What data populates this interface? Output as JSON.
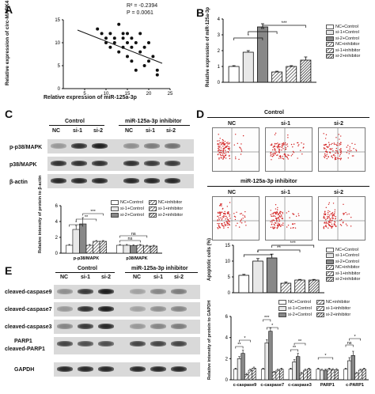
{
  "panel_labels": {
    "A": "A",
    "B": "B",
    "C": "C",
    "D": "D",
    "E": "E"
  },
  "panelA": {
    "stats": {
      "r2": "R² = -0.2394",
      "p": "P = 0.0061"
    },
    "xlabel": "Relative expression of miR-125a-3p",
    "ylabel": "Relative expression of circ-MAPK4",
    "x_ticks": [
      "5",
      "10",
      "15",
      "20",
      "25"
    ],
    "y_ticks": [
      "0",
      "5",
      "10",
      "15"
    ]
  },
  "panelB": {
    "ylabel": "Relative expression of miR-125a-3p",
    "y_ticks": [
      "0",
      "1",
      "2",
      "3",
      "4"
    ],
    "sig": [
      "*",
      "**",
      "***"
    ]
  },
  "legend6": [
    "NC+Control",
    "si-1+Control",
    "si-2+Control",
    "NC+inhibitor",
    "si-1+inhibitor",
    "si-2+inhibitor"
  ],
  "panelC": {
    "group1": "Control",
    "group2": "miR-125a-3p inhibitor",
    "lanes": [
      "NC",
      "si-1",
      "si-2",
      "NC",
      "si-1",
      "si-2"
    ],
    "rows": [
      "p-p38/MAPK",
      "p38/MAPK",
      "β-actin"
    ],
    "ylabel": "Relative intensity of protein to β-actin",
    "y_ticks": [
      "0",
      "2",
      "4",
      "6"
    ],
    "categories": [
      "p-p38/MAPK",
      "p38/MAPK"
    ],
    "sig": [
      "*",
      "**",
      "***",
      "ns",
      "ns"
    ]
  },
  "panelD": {
    "group1": "Control",
    "group2": "miR-125a-3p inhibitor",
    "lanes": [
      "NC",
      "si-1",
      "si-2"
    ],
    "ylabel": "Apoptotic cells (%)",
    "y_ticks": [
      "0",
      "5",
      "10",
      "15"
    ],
    "sig": [
      "*",
      "**",
      "***"
    ]
  },
  "panelE": {
    "group1": "Control",
    "group2": "miR-125a-3p inhibitor",
    "lanes": [
      "NC",
      "si-1",
      "si-2",
      "NC",
      "si-1",
      "si-2"
    ],
    "rows": [
      "cleaved-caspase9",
      "cleaved-caspase7",
      "cleaved-caspase3",
      "PARP1",
      "cleaved-PARP1",
      "GAPDH"
    ],
    "ylabel": "Relative intensity of protein to GAPDH",
    "y_ticks": [
      "0",
      "2",
      "4",
      "6"
    ],
    "categories": [
      "c-caspase9",
      "c-caspase7",
      "c-caspase3",
      "PARP1",
      "c-PARP1"
    ],
    "sig": [
      "**",
      "*",
      "***",
      "*",
      "**",
      "**",
      "*",
      "ns",
      "*"
    ]
  },
  "chart_data": [
    {
      "type": "scatter",
      "id": "A",
      "x": [
        8,
        9,
        10,
        11,
        12,
        12,
        13,
        13,
        14,
        14,
        15,
        15,
        15,
        16,
        16,
        16,
        17,
        17,
        18,
        18,
        19,
        19,
        20,
        20,
        21,
        22,
        22,
        14,
        11,
        10
      ],
      "y": [
        13,
        12,
        11,
        12,
        10,
        11,
        14,
        8,
        9,
        11,
        10,
        12,
        7,
        11,
        6,
        9,
        10,
        4,
        12,
        8,
        9,
        5,
        10,
        6,
        7,
        4,
        3,
        12,
        9,
        10
      ],
      "xlabel": "Relative expression of miR-125a-3p",
      "ylabel": "Relative expression of circ-MAPK4",
      "xlim": [
        0,
        25
      ],
      "ylim": [
        0,
        15
      ]
    },
    {
      "type": "bar",
      "id": "B",
      "categories": [
        "NC+Control",
        "si-1+Control",
        "si-2+Control",
        "NC+inhibitor",
        "si-1+inhibitor",
        "si-2+inhibitor"
      ],
      "values": [
        1.0,
        1.9,
        3.5,
        0.65,
        1.0,
        1.4
      ],
      "errors": [
        0.05,
        0.1,
        0.2,
        0.05,
        0.05,
        0.2
      ],
      "ylabel": "Relative expression of miR-125a-3p",
      "ylim": [
        0,
        4
      ]
    },
    {
      "type": "bar",
      "id": "C",
      "categories": [
        "p-p38/MAPK",
        "p38/MAPK"
      ],
      "series": [
        {
          "name": "NC+Control",
          "values": [
            1.0,
            1.0
          ],
          "errors": [
            0.1,
            0.1
          ]
        },
        {
          "name": "si-1+Control",
          "values": [
            3.0,
            1.0
          ],
          "errors": [
            0.5,
            0.1
          ]
        },
        {
          "name": "si-2+Control",
          "values": [
            3.7,
            0.95
          ],
          "errors": [
            0.8,
            0.1
          ]
        },
        {
          "name": "NC+inhibitor",
          "values": [
            1.0,
            1.0
          ],
          "errors": [
            0.1,
            0.1
          ]
        },
        {
          "name": "si-1+inhibitor",
          "values": [
            1.5,
            0.9
          ],
          "errors": [
            0.1,
            0.1
          ]
        },
        {
          "name": "si-2+inhibitor",
          "values": [
            1.5,
            0.9
          ],
          "errors": [
            0.1,
            0.1
          ]
        }
      ],
      "ylabel": "Relative intensity of protein to β-actin",
      "ylim": [
        0,
        6
      ]
    },
    {
      "type": "bar",
      "id": "D",
      "categories": [
        "NC+Control",
        "si-1+Control",
        "si-2+Control",
        "NC+inhibitor",
        "si-1+inhibitor",
        "si-2+inhibitor"
      ],
      "values": [
        5.5,
        10,
        11,
        3,
        4,
        4
      ],
      "errors": [
        0.3,
        0.8,
        1.2,
        0.4,
        0.2,
        0.2
      ],
      "ylabel": "Apoptotic cells (%)",
      "ylim": [
        0,
        15
      ]
    },
    {
      "type": "bar",
      "id": "E",
      "categories": [
        "c-caspase9",
        "c-caspase7",
        "c-caspase3",
        "PARP1",
        "c-PARP1"
      ],
      "series": [
        {
          "name": "NC+Control",
          "values": [
            1.0,
            1.0,
            1.0,
            1.0,
            1.0
          ],
          "errors": [
            0.1,
            0.1,
            0.1,
            0.1,
            0.1
          ]
        },
        {
          "name": "si-1+Control",
          "values": [
            2.0,
            3.5,
            1.7,
            0.9,
            1.8
          ],
          "errors": [
            0.2,
            0.3,
            0.2,
            0.1,
            0.3
          ]
        },
        {
          "name": "si-2+Control",
          "values": [
            2.5,
            4.6,
            2.2,
            0.9,
            2.3
          ],
          "errors": [
            0.3,
            0.3,
            0.3,
            0.1,
            0.4
          ]
        },
        {
          "name": "NC+inhibitor",
          "values": [
            0.5,
            0.7,
            0.6,
            1.0,
            0.6
          ],
          "errors": [
            0.1,
            0.1,
            0.1,
            0.1,
            0.1
          ]
        },
        {
          "name": "si-1+inhibitor",
          "values": [
            0.9,
            0.9,
            0.9,
            0.95,
            0.9
          ],
          "errors": [
            0.1,
            0.1,
            0.1,
            0.1,
            0.1
          ]
        },
        {
          "name": "si-2+inhibitor",
          "values": [
            1.1,
            1.0,
            1.0,
            0.95,
            1.0
          ],
          "errors": [
            0.1,
            0.1,
            0.1,
            0.1,
            0.1
          ]
        }
      ],
      "ylabel": "Relative intensity of protein to GAPDH",
      "ylim": [
        0,
        6
      ]
    }
  ]
}
